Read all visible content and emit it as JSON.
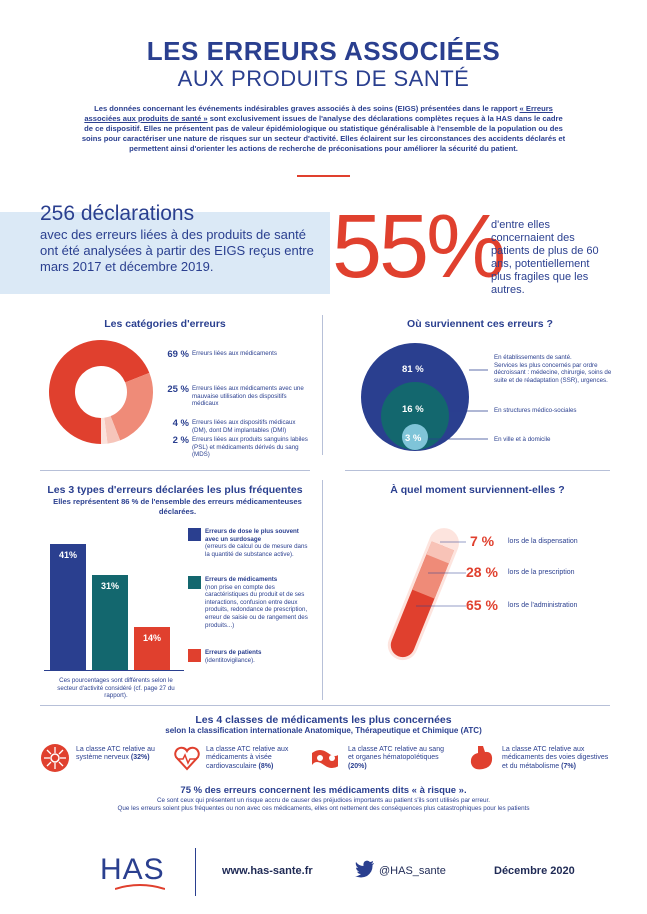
{
  "header": {
    "title_line1": "LES ERREURS ASSOCIÉES",
    "title_line2": "AUX PRODUITS DE SANTÉ",
    "intro_part1": "Les données concernant les événements indésirables graves associés à des soins (EIGS) présentées dans le rapport",
    "intro_link": "« Erreurs associées aux produits de santé »",
    "intro_part2": "sont exclusivement issues de l'analyse des déclarations complètes reçues à la HAS dans le cadre de ce dispositif. Elles ne présentent pas de valeur épidémiologique ou statistique généralisable à l'ensemble de la population ou des soins pour caractériser une nature de risques sur un secteur d'activité. Elles éclairent sur les circonstances des accidents déclarés et permettent ainsi d'orienter les actions de recherche de préconisations pour améliorer la sécurité du patient."
  },
  "key_figures": {
    "declarations": "256 déclarations",
    "declarations_desc": "avec des erreurs liées à des produits de santé ont été analysées à partir des EIGS reçus entre mars 2017 et décembre 2019.",
    "percent": "55%",
    "percent_desc": "d'entre elles concernaient des patients de plus de 60 ans, potentiellement plus fragiles que les autres."
  },
  "categories": {
    "title": "Les catégories d'erreurs",
    "items": [
      {
        "pct": "69 %",
        "label": "Erreurs liées aux médicaments",
        "value": 69,
        "color": "#e0402e"
      },
      {
        "pct": "25 %",
        "label": "Erreurs liées aux médicaments avec une mauvaise utilisation des dispositifs médicaux",
        "value": 25,
        "color": "#ef8b78"
      },
      {
        "pct": "4 %",
        "label": "Erreurs liées aux dispositifs médicaux (DM), dont DM implantables (DMI)",
        "value": 4,
        "color": "#f6c5ba"
      },
      {
        "pct": "2 %",
        "label": "Erreurs liées aux produits sanguins labiles (PSL) et médicaments dérivés du sang (MDS)",
        "value": 2,
        "color": "#fbe2dc"
      }
    ]
  },
  "where": {
    "title": "Où surviennent ces erreurs ?",
    "items": [
      {
        "pct": "81 %",
        "label_line1": "En établissements de santé.",
        "label_line2": "Services les plus concernés par ordre décroissant : médecine, chirurgie, soins de suite et de réadaptation (SSR), urgences.",
        "value": 81,
        "color": "#2a3f8f"
      },
      {
        "pct": "16 %",
        "label": "En structures médico-sociales",
        "value": 16,
        "color": "#13676e"
      },
      {
        "pct": "3 %",
        "label": "En ville et à domicile",
        "value": 3,
        "color": "#7fc4d8"
      }
    ]
  },
  "types": {
    "title": "Les 3 types d'erreurs déclarées les plus fréquentes",
    "subtitle": "Elles représentent 86 % de l'ensemble des erreurs médicamenteuses déclarées.",
    "footnote": "Ces pourcentages sont différents selon le secteur d'activité considéré (cf. page 27 du rapport).",
    "items": [
      {
        "pct": "41%",
        "value": 41,
        "color": "#2a3f8f",
        "title": "Erreurs de dose le plus souvent avec un surdosage",
        "desc": "(erreurs de calcul ou de mesure dans la quantité de substance active)."
      },
      {
        "pct": "31%",
        "value": 31,
        "color": "#13676e",
        "title": "Erreurs de médicaments",
        "desc": "(non prise en compte des caractéristiques du produit et de ses interactions, confusion entre deux produits, redondance de prescription, erreur de saisie ou de rangement des produits...)"
      },
      {
        "pct": "14%",
        "value": 14,
        "color": "#e0402e",
        "title": "Erreurs de patients",
        "desc": "(identitovigilance)."
      }
    ]
  },
  "when": {
    "title": "À quel moment surviennent-elles ?",
    "items": [
      {
        "pct": "7 %",
        "label": "lors de la dispensation"
      },
      {
        "pct": "28 %",
        "label": "lors de la prescription"
      },
      {
        "pct": "65 %",
        "label": "lors de l'administration"
      }
    ]
  },
  "atc": {
    "title": "Les 4 classes de médicaments les plus concernées",
    "subtitle": "selon la classification internationale Anatomique, Thérapeutique et Chimique (ATC)",
    "items": [
      {
        "icon": "nervous-system-icon",
        "text": "La classe ATC relative au système nerveux",
        "pct": "(32%)"
      },
      {
        "icon": "heart-icon",
        "text": "La classe ATC relative aux médicaments à visée cardiovasculaire",
        "pct": "(8%)"
      },
      {
        "icon": "blood-icon",
        "text": "La classe ATC relative au sang et organes hématopoïétiques",
        "pct": "(20%)"
      },
      {
        "icon": "stomach-icon",
        "text": "La classe ATC relative aux médicaments des voies digestives et du métabolisme",
        "pct": "(7%)"
      }
    ],
    "risk_title": "75 % des erreurs concernent les médicaments dits « à risque ».",
    "risk_desc1": "Ce sont ceux qui présentent un risque accru de causer des préjudices importants au patient s'ils sont utilisés par erreur.",
    "risk_desc2": "Que les erreurs soient plus fréquentes ou non avec ces médicaments, elles ont nettement des conséquences plus catastrophiques pour les patients"
  },
  "footer": {
    "logo": "HAS",
    "website": "www.has-sante.fr",
    "twitter": "@HAS_sante",
    "date": "Décembre 2020"
  },
  "colors": {
    "navy": "#2a3f8f",
    "red": "#e0402e",
    "teal": "#13676e",
    "light_blue": "#dbe9f6"
  }
}
